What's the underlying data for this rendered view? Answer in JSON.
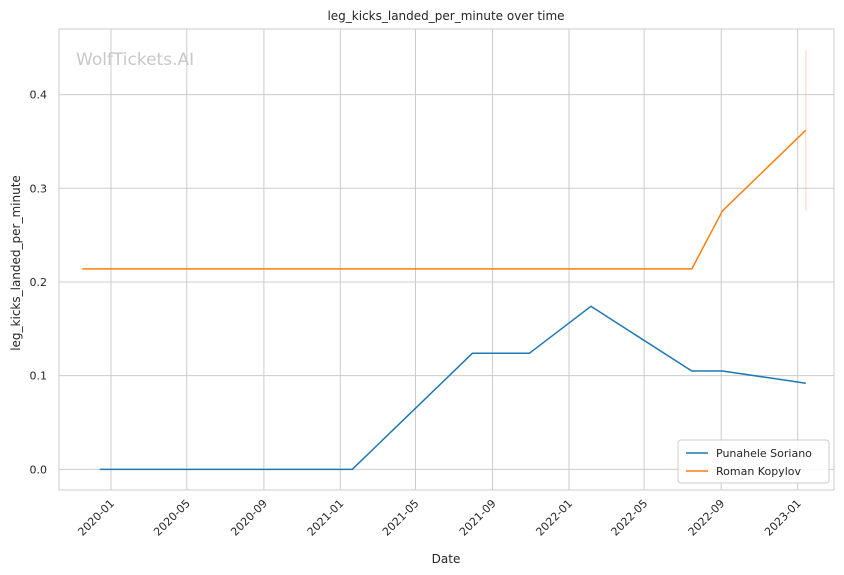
{
  "chart_data": {
    "type": "line",
    "title": "leg_kicks_landed_per_minute over time",
    "xlabel": "Date",
    "ylabel": "leg_kicks_landed_per_minute",
    "watermark": "WolfTickets.AI",
    "x_ticks": [
      "2020-01",
      "2020-05",
      "2020-09",
      "2021-01",
      "2021-05",
      "2021-09",
      "2022-01",
      "2022-05",
      "2022-09",
      "2023-01"
    ],
    "y_ticks": [
      "0.0",
      "0.1",
      "0.2",
      "0.3",
      "0.4"
    ],
    "xlim": [
      "2019-10-10",
      "2023-02-28"
    ],
    "ylim": [
      -0.022,
      0.47
    ],
    "grid": true,
    "legend_position": "bottom-right",
    "series": [
      {
        "name": "Punahele Soriano",
        "color": "#1f77b4",
        "points": [
          {
            "x": "2019-12-14",
            "y": 0.0
          },
          {
            "x": "2021-01-20",
            "y": 0.0
          },
          {
            "x": "2021-07-31",
            "y": 0.124
          },
          {
            "x": "2021-10-30",
            "y": 0.124
          },
          {
            "x": "2022-02-05",
            "y": 0.174
          },
          {
            "x": "2022-07-16",
            "y": 0.105
          },
          {
            "x": "2022-09-03",
            "y": 0.105
          },
          {
            "x": "2023-01-14",
            "y": 0.092
          }
        ]
      },
      {
        "name": "Roman Kopylov",
        "color": "#ff7f0e",
        "points": [
          {
            "x": "2019-11-16",
            "y": 0.214
          },
          {
            "x": "2022-07-16",
            "y": 0.214
          },
          {
            "x": "2022-09-03",
            "y": 0.276
          },
          {
            "x": "2023-01-14",
            "y": 0.362
          }
        ],
        "error_bar": {
          "x": "2023-01-14",
          "low": 0.276,
          "high": 0.448
        }
      }
    ]
  }
}
